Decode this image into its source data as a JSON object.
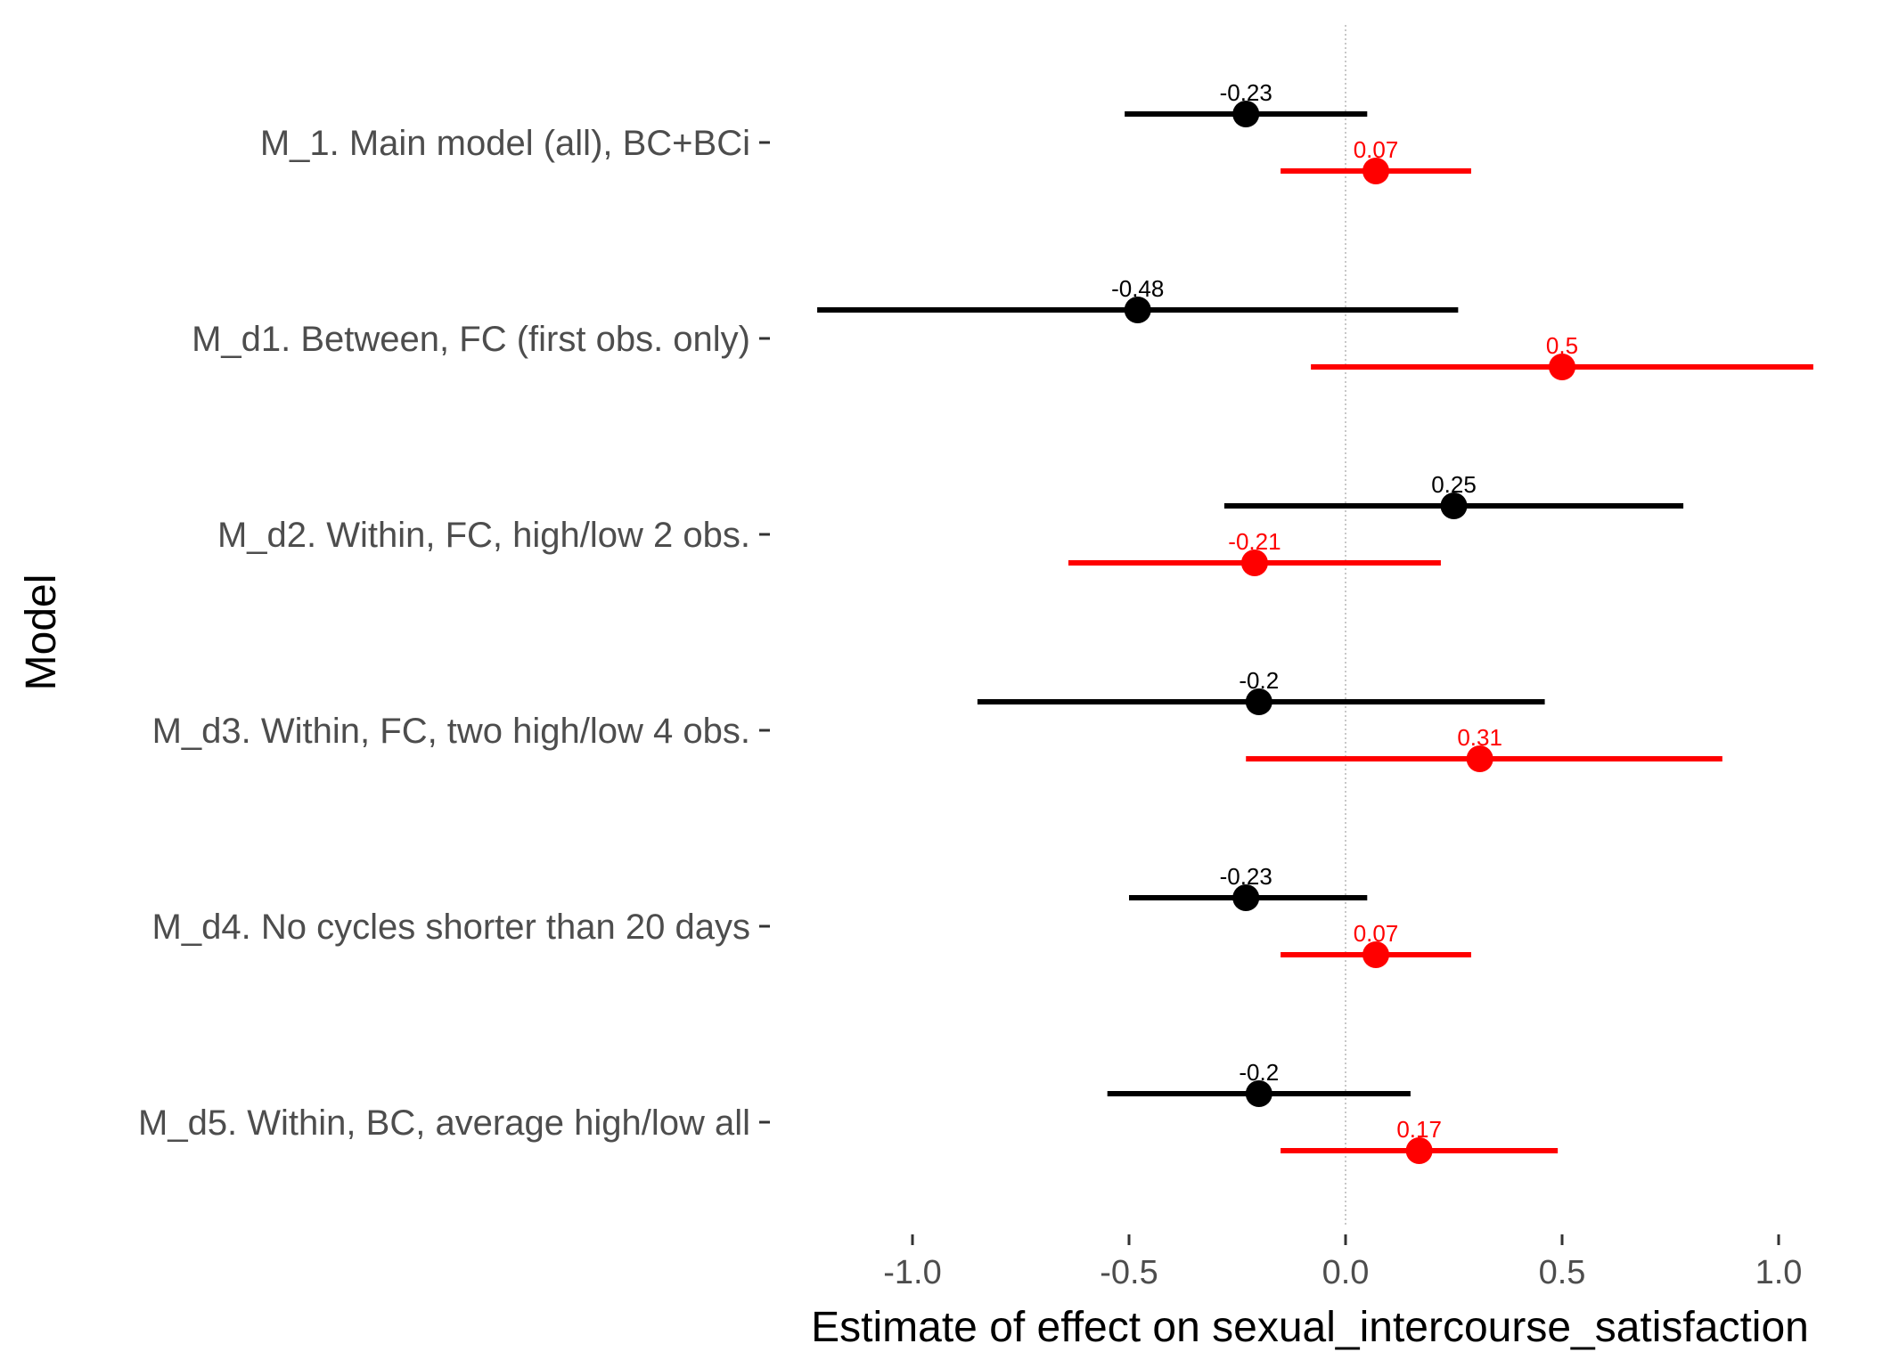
{
  "chart_data": {
    "type": "forest",
    "xlabel": "Estimate of effect on sexual_intercourse_satisfaction",
    "ylabel": "Model",
    "xlim": [
      -1.2,
      1.2
    ],
    "xticks": [
      -1.0,
      -0.5,
      0.0,
      0.5,
      1.0
    ],
    "xtick_labels": [
      "-1.0",
      "-0.5",
      "0.0",
      "0.5",
      "1.0"
    ],
    "reference_line": 0,
    "grid": false,
    "legend": "none",
    "colors": [
      "#000000",
      "#ff0000"
    ],
    "categories": [
      "M_1. Main model (all), BC+BCi",
      "M_d1. Between, FC (first obs. only)",
      "M_d2. Within, FC, high/low 2 obs.",
      "M_d3. Within, FC, two high/low 4 obs.",
      "M_d4. No cycles shorter than 20 days",
      "M_d5. Within, BC, average high/low all"
    ],
    "series": [
      {
        "color": "#000000",
        "points": [
          {
            "estimate": -0.23,
            "lower": -0.51,
            "upper": 0.05,
            "label": "-0.23"
          },
          {
            "estimate": -0.48,
            "lower": -1.22,
            "upper": 0.26,
            "label": "-0.48"
          },
          {
            "estimate": 0.25,
            "lower": -0.28,
            "upper": 0.78,
            "label": "0.25"
          },
          {
            "estimate": -0.2,
            "lower": -0.85,
            "upper": 0.46,
            "label": "-0.2"
          },
          {
            "estimate": -0.23,
            "lower": -0.5,
            "upper": 0.05,
            "label": "-0.23"
          },
          {
            "estimate": -0.2,
            "lower": -0.55,
            "upper": 0.15,
            "label": "-0.2"
          }
        ]
      },
      {
        "color": "#ff0000",
        "points": [
          {
            "estimate": 0.07,
            "lower": -0.15,
            "upper": 0.29,
            "label": "0.07"
          },
          {
            "estimate": 0.5,
            "lower": -0.08,
            "upper": 1.08,
            "label": "0.5"
          },
          {
            "estimate": -0.21,
            "lower": -0.64,
            "upper": 0.22,
            "label": "-0.21"
          },
          {
            "estimate": 0.31,
            "lower": -0.23,
            "upper": 0.87,
            "label": "0.31"
          },
          {
            "estimate": 0.07,
            "lower": -0.15,
            "upper": 0.29,
            "label": "0.07"
          },
          {
            "estimate": 0.17,
            "lower": -0.15,
            "upper": 0.49,
            "label": "0.17"
          }
        ]
      }
    ]
  }
}
